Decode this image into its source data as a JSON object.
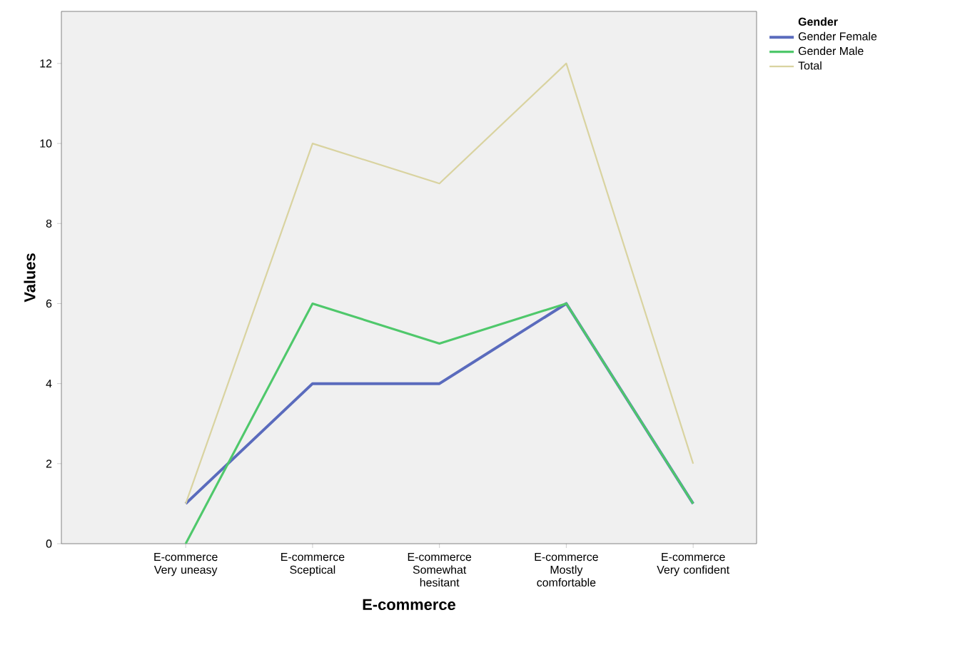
{
  "chart_data": {
    "type": "line",
    "xlabel": "E-commerce",
    "ylabel": "Values",
    "legend_title": "Gender",
    "legend": "top right",
    "categories": [
      "E-commerce Very uneasy",
      "E-commerce Sceptical",
      "E-commerce Somewhat hesitant",
      "E-commerce Mostly comfortable",
      "E-commerce Very confident"
    ],
    "ylim": [
      0,
      13.3
    ],
    "yticks": [
      0,
      2,
      4,
      6,
      8,
      10,
      12
    ],
    "grid": false,
    "marker": "none",
    "line_style": "solid",
    "series": [
      {
        "name": "Gender Female",
        "color": "#5a6bbd",
        "values": [
          1,
          4,
          4,
          6,
          1
        ]
      },
      {
        "name": "Gender Male",
        "color": "#4fc86b",
        "values": [
          0,
          6,
          5,
          6,
          1
        ]
      },
      {
        "name": "Total",
        "color": "#d9d3a0",
        "values": [
          1,
          10,
          9,
          12,
          2
        ]
      }
    ]
  }
}
